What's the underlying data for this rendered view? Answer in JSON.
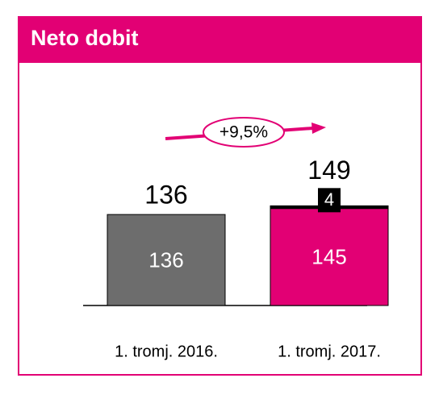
{
  "chart_data": {
    "type": "bar",
    "stacked": true,
    "title": "Neto dobit",
    "annotation": "+9,5%",
    "categories": [
      "1. tromj. 2016.",
      "1. tromj. 2017."
    ],
    "series": [
      {
        "colors": [
          "#6d6d6d",
          "#e20074"
        ],
        "values": [
          136,
          145
        ]
      },
      {
        "color": "#000000",
        "values": [
          null,
          4
        ]
      }
    ],
    "totals": [
      136,
      149
    ]
  }
}
